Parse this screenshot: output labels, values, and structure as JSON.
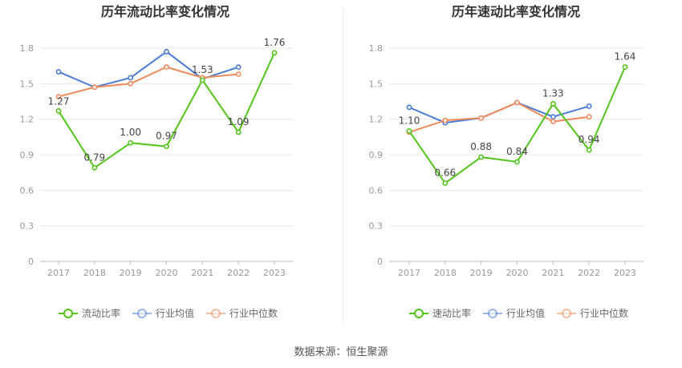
{
  "source": "数据来源：恒生聚源",
  "colors": {
    "green": "#52c41a",
    "blue": "#4a7bd6",
    "orange": "#f08a5a",
    "axis": "#999999",
    "grid": "#e8e8e8",
    "title": "#333333"
  },
  "chart_data": [
    {
      "type": "line",
      "title": "历年流动比率变化情况",
      "xlabel": "",
      "ylabel": "",
      "categories": [
        "2017",
        "2018",
        "2019",
        "2020",
        "2021",
        "2022",
        "2023"
      ],
      "ylim": [
        0,
        1.8
      ],
      "yticks": [
        "0",
        "0.3",
        "0.6",
        "0.9",
        "1.2",
        "1.5",
        "1.8"
      ],
      "legend_position": "bottom",
      "series": [
        {
          "name": "流动比率",
          "color": "#52c41a",
          "values": [
            1.27,
            0.79,
            1.0,
            0.97,
            1.53,
            1.09,
            1.76
          ],
          "labels": [
            "1.27",
            "0.79",
            "1.00",
            "0.97",
            "1.53",
            "1.09",
            "1.76"
          ]
        },
        {
          "name": "行业均值",
          "color": "#4a7bd6",
          "values": [
            1.6,
            1.47,
            1.55,
            1.77,
            1.54,
            1.64,
            null
          ]
        },
        {
          "name": "行业中位数",
          "color": "#f08a5a",
          "values": [
            1.39,
            1.47,
            1.5,
            1.64,
            1.55,
            1.58,
            null
          ]
        }
      ]
    },
    {
      "type": "line",
      "title": "历年速动比率变化情况",
      "xlabel": "",
      "ylabel": "",
      "categories": [
        "2017",
        "2018",
        "2019",
        "2020",
        "2021",
        "2022",
        "2023"
      ],
      "ylim": [
        0,
        1.8
      ],
      "yticks": [
        "0",
        "0.3",
        "0.6",
        "0.9",
        "1.2",
        "1.5",
        "1.8"
      ],
      "legend_position": "bottom",
      "series": [
        {
          "name": "速动比率",
          "color": "#52c41a",
          "values": [
            1.1,
            0.66,
            0.88,
            0.84,
            1.33,
            0.94,
            1.64
          ],
          "labels": [
            "1.10",
            "0.66",
            "0.88",
            "0.84",
            "1.33",
            "0.94",
            "1.64"
          ]
        },
        {
          "name": "行业均值",
          "color": "#4a7bd6",
          "values": [
            1.3,
            1.17,
            1.21,
            1.34,
            1.22,
            1.31,
            null
          ]
        },
        {
          "name": "行业中位数",
          "color": "#f08a5a",
          "values": [
            1.09,
            1.19,
            1.21,
            1.34,
            1.18,
            1.22,
            null
          ]
        }
      ]
    }
  ]
}
